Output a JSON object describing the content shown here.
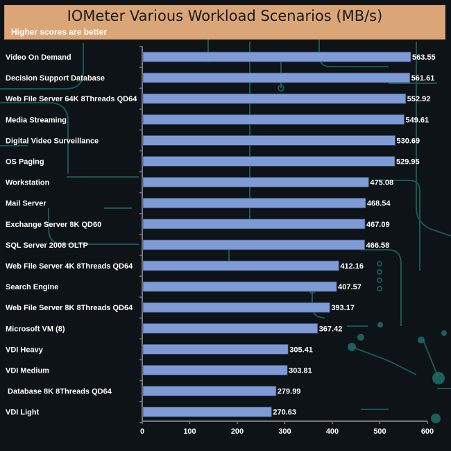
{
  "header": {
    "title": "IOMeter Various Workload Scenarios (MB/s)",
    "subtitle": "Higher scores are better"
  },
  "colors": {
    "bar": "#7f9bd6",
    "bar_edge": "#3c4f7a",
    "header_bg": "#dba677",
    "background": "#0d1317",
    "circuit": "#1f6e68"
  },
  "chart_data": {
    "type": "bar",
    "orientation": "horizontal",
    "title": "IOMeter Various Workload Scenarios (MB/s)",
    "subtitle": "Higher scores are better",
    "categories": [
      "Video On Demand",
      "Decision Support Database",
      "Web File Server 64K 8Threads QD64",
      "Media Streaming",
      "Digital Video Surveillance",
      "OS Paging",
      "Workstation",
      "Mail Server",
      "Exchange Server 8K QD60",
      "SQL Server 2008 OLTP",
      "Web File Server 4K 8Threads QD64",
      "Search Engine",
      "Web File Server 8K 8Threads QD64",
      "Microsoft VM (8)",
      "VDI Heavy",
      "VDI Medium",
      " Database 8K 8Threads QD64",
      "VDI Light"
    ],
    "values": [
      563.55,
      561.61,
      552.92,
      549.61,
      530.69,
      529.95,
      475.08,
      468.54,
      467.09,
      466.58,
      412.16,
      407.57,
      393.17,
      367.42,
      305.41,
      303.81,
      279.99,
      270.63
    ],
    "value_labels": [
      "563.55",
      "561.61",
      "552.92",
      "549.61",
      "530.69",
      "529.95",
      "475.08",
      "468.54",
      "467.09",
      "466.58",
      "412.16",
      "407.57",
      "393.17",
      "367.42",
      "305.41",
      "303.81",
      "279.99",
      "270.63"
    ],
    "xlim": [
      0,
      600
    ],
    "xticks": [
      0,
      100,
      200,
      300,
      400,
      500,
      600
    ],
    "xtick_labels": [
      "0",
      "100",
      "200",
      "300",
      "400",
      "500",
      "600"
    ],
    "xlabel": "",
    "ylabel": "",
    "grid": false,
    "legend": "none"
  }
}
